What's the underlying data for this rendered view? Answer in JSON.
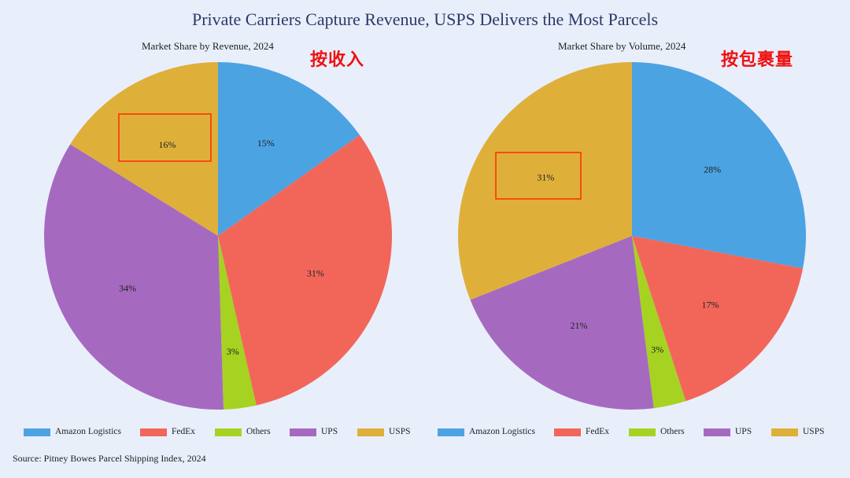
{
  "title": "Private Carriers Capture Revenue, USPS Delivers the Most Parcels",
  "source": "Source: Pitney Bowes Parcel Shipping Index, 2024",
  "colors": {
    "Amazon Logistics": "#4ba3e2",
    "FedEx": "#f2665a",
    "Others": "#a6d321",
    "UPS": "#a56abf",
    "USPS": "#deb03a",
    "highlight_box": "#ff3300",
    "annotation": "#ee1111"
  },
  "chart_data": [
    {
      "type": "pie",
      "title": "Market Share by Revenue, 2024",
      "annotation": "按收入",
      "labels": [
        "Amazon Logistics",
        "FedEx",
        "Others",
        "UPS",
        "USPS"
      ],
      "values": [
        15,
        31,
        3,
        34,
        16
      ],
      "value_labels": [
        "15%",
        "31%",
        "3%",
        "34%",
        "16%"
      ],
      "highlighted": "USPS",
      "start": "top",
      "direction": "clockwise",
      "legend": [
        "Amazon Logistics",
        "FedEx",
        "Others",
        "UPS",
        "USPS"
      ]
    },
    {
      "type": "pie",
      "title": "Market Share by Volume, 2024",
      "annotation": "按包裹量",
      "labels": [
        "Amazon Logistics",
        "FedEx",
        "Others",
        "UPS",
        "USPS"
      ],
      "values": [
        28,
        17,
        3,
        21,
        31
      ],
      "value_labels": [
        "28%",
        "17%",
        "3%",
        "21%",
        "31%"
      ],
      "highlighted": "USPS",
      "start": "top",
      "direction": "clockwise",
      "legend": [
        "Amazon Logistics",
        "FedEx",
        "Others",
        "UPS",
        "USPS"
      ]
    }
  ]
}
